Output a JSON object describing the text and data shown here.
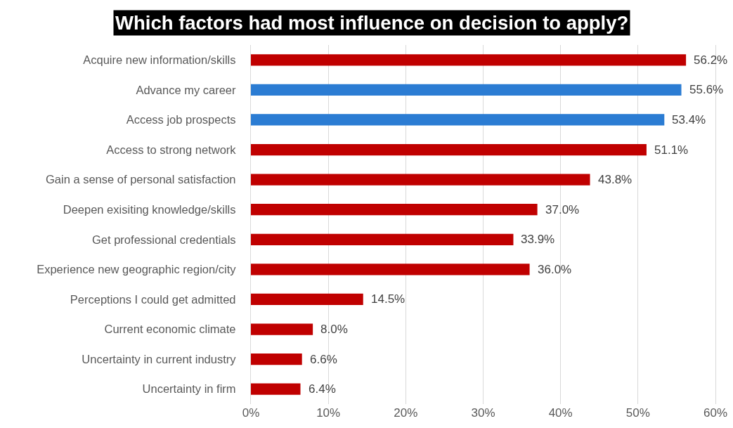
{
  "chart_data": {
    "type": "bar",
    "orientation": "horizontal",
    "title": "Which factors had most influence on decision to apply?",
    "categories": [
      "Acquire new information/skills",
      "Advance my career",
      "Access job prospects",
      "Access to strong network",
      "Gain a sense of personal satisfaction",
      "Deepen exisiting knowledge/skills",
      "Get professional credentials",
      "Experience new geographic region/city",
      "Perceptions I could get admitted",
      "Current economic climate",
      "Uncertainty in current industry",
      "Uncertainty in firm"
    ],
    "values": [
      56.2,
      55.6,
      53.4,
      51.1,
      43.8,
      37.0,
      33.9,
      36.0,
      14.5,
      8.0,
      6.6,
      6.4
    ],
    "colors": [
      "#c00000",
      "#2b7cd3",
      "#2b7cd3",
      "#c00000",
      "#c00000",
      "#c00000",
      "#c00000",
      "#c00000",
      "#c00000",
      "#c00000",
      "#c00000",
      "#c00000"
    ],
    "value_labels": [
      "56.2%",
      "55.6%",
      "53.4%",
      "51.1%",
      "43.8%",
      "37.0%",
      "33.9%",
      "36.0%",
      "14.5%",
      "8.0%",
      "6.6%",
      "6.4%"
    ],
    "xlim": [
      0,
      60
    ],
    "xticks": [
      {
        "value": 0,
        "label": "0%"
      },
      {
        "value": 10,
        "label": "10%"
      },
      {
        "value": 20,
        "label": "20%"
      },
      {
        "value": 30,
        "label": "30%"
      },
      {
        "value": 40,
        "label": "40%"
      },
      {
        "value": 50,
        "label": "50%"
      },
      {
        "value": 60,
        "label": "60%"
      }
    ],
    "grid": "x"
  }
}
